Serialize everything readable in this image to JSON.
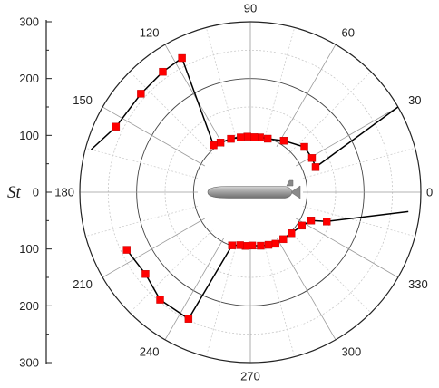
{
  "chart_data": {
    "type": "polar-scatter-line",
    "title": "",
    "radial_axis": {
      "label": "St",
      "range": [
        0,
        300
      ],
      "ticks": [
        "0",
        "100",
        "200",
        "300"
      ]
    },
    "angular_axis": {
      "unit": "degrees",
      "ticks": [
        "0",
        "30",
        "60",
        "90",
        "120",
        "150",
        "180",
        "210",
        "240",
        "270",
        "300",
        "330"
      ]
    },
    "grid": true,
    "center_graphic": "submarine-hull",
    "series": [
      {
        "color": "#ff0000",
        "line_color": "#000000",
        "marker": "square",
        "points": [
          {
            "theta": 30,
            "r": 300
          },
          {
            "theta": 21,
            "r": 123
          },
          {
            "theta": 29,
            "r": 124
          },
          {
            "theta": 40,
            "r": 124
          },
          {
            "theta": 57,
            "r": 108
          },
          {
            "theta": 72,
            "r": 99
          },
          {
            "theta": 80,
            "r": 98
          },
          {
            "theta": 86,
            "r": 97
          },
          {
            "theta": 93,
            "r": 98
          },
          {
            "theta": 100,
            "r": 98
          },
          {
            "theta": 110,
            "r": 100
          },
          {
            "theta": 121,
            "r": 102
          },
          {
            "theta": 128,
            "r": 105
          },
          {
            "theta": 117,
            "r": 265
          },
          {
            "theta": 126,
            "r": 262
          },
          {
            "theta": 138,
            "r": 259
          },
          {
            "theta": 154,
            "r": 263
          },
          {
            "theta": 165,
            "r": 290
          }
        ]
      },
      {
        "color": "#ff0000",
        "line_color": "#000000",
        "marker": "square",
        "points": [
          {
            "theta": 353,
            "r": 280
          },
          {
            "theta": 339,
            "r": 144
          },
          {
            "theta": 335,
            "r": 118
          },
          {
            "theta": 327,
            "r": 108
          },
          {
            "theta": 315,
            "r": 102
          },
          {
            "theta": 305,
            "r": 101
          },
          {
            "theta": 296,
            "r": 101
          },
          {
            "theta": 289,
            "r": 98
          },
          {
            "theta": 281,
            "r": 96
          },
          {
            "theta": 272,
            "r": 94
          },
          {
            "theta": 265,
            "r": 95
          },
          {
            "theta": 259,
            "r": 95
          },
          {
            "theta": 251,
            "r": 99
          },
          {
            "theta": 244,
            "r": 248
          },
          {
            "theta": 230,
            "r": 247
          },
          {
            "theta": 218,
            "r": 234
          },
          {
            "theta": 205,
            "r": 240
          }
        ]
      }
    ]
  }
}
